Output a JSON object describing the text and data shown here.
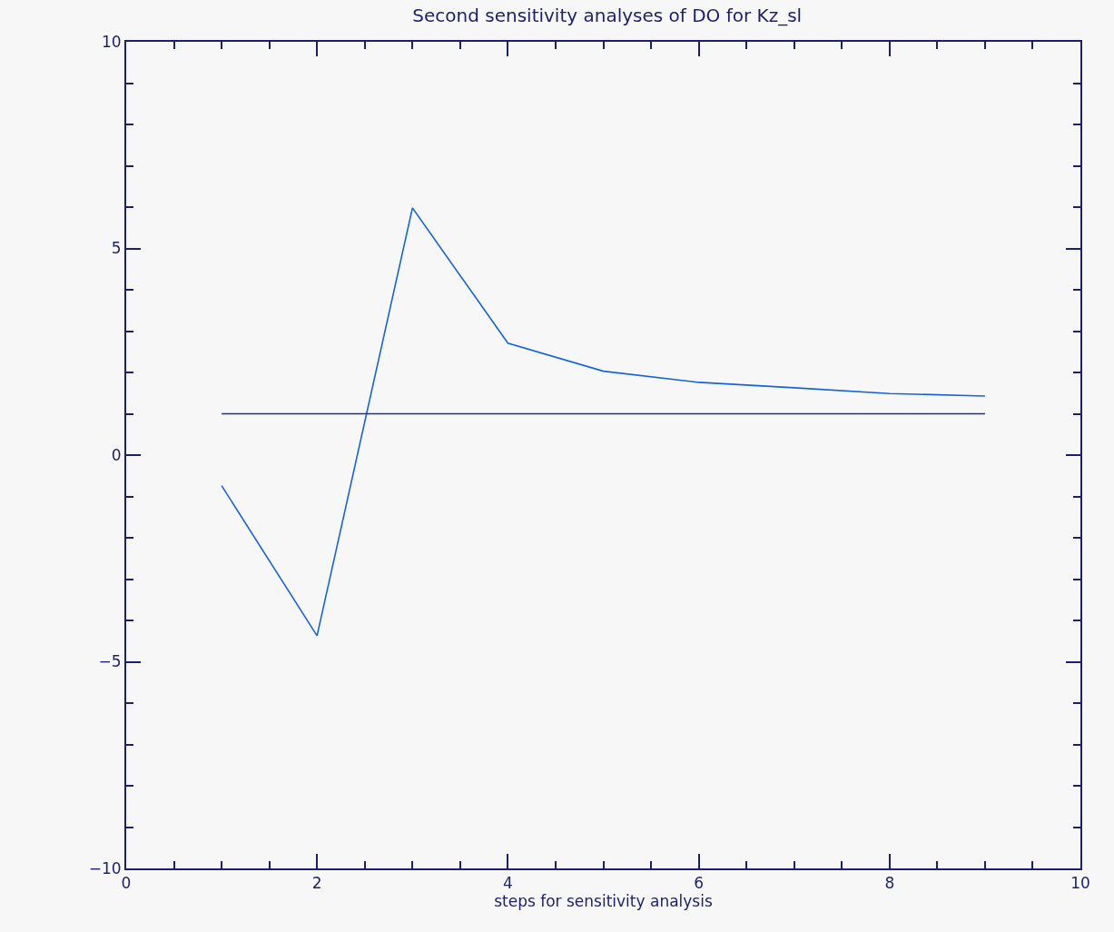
{
  "chart_data": {
    "type": "line",
    "title": "Second sensitivity analyses of DO for Kz_sl",
    "xlabel": "steps for sensitivity analysis",
    "x": [
      1,
      2,
      3,
      4,
      5,
      6,
      7,
      8,
      9
    ],
    "series": [
      {
        "color": "#1464dc",
        "values": [
          -0.74,
          -4.37,
          5.98,
          2.71,
          2.03,
          1.76,
          1.63,
          1.49,
          1.43
        ]
      },
      {
        "color": "#1a30a0",
        "values": [
          1.0,
          1.0,
          1.0,
          1.0,
          1.0,
          1.0,
          1.0,
          1.0,
          1.0
        ]
      }
    ],
    "xlim": [
      0,
      10
    ],
    "xticks": [
      0,
      2,
      4,
      6,
      8,
      10
    ],
    "ylim": [
      -10,
      10
    ],
    "yticks": [
      -10,
      -5,
      0,
      5,
      10
    ],
    "grid": false,
    "marker": "none",
    "line_style": "solid"
  }
}
